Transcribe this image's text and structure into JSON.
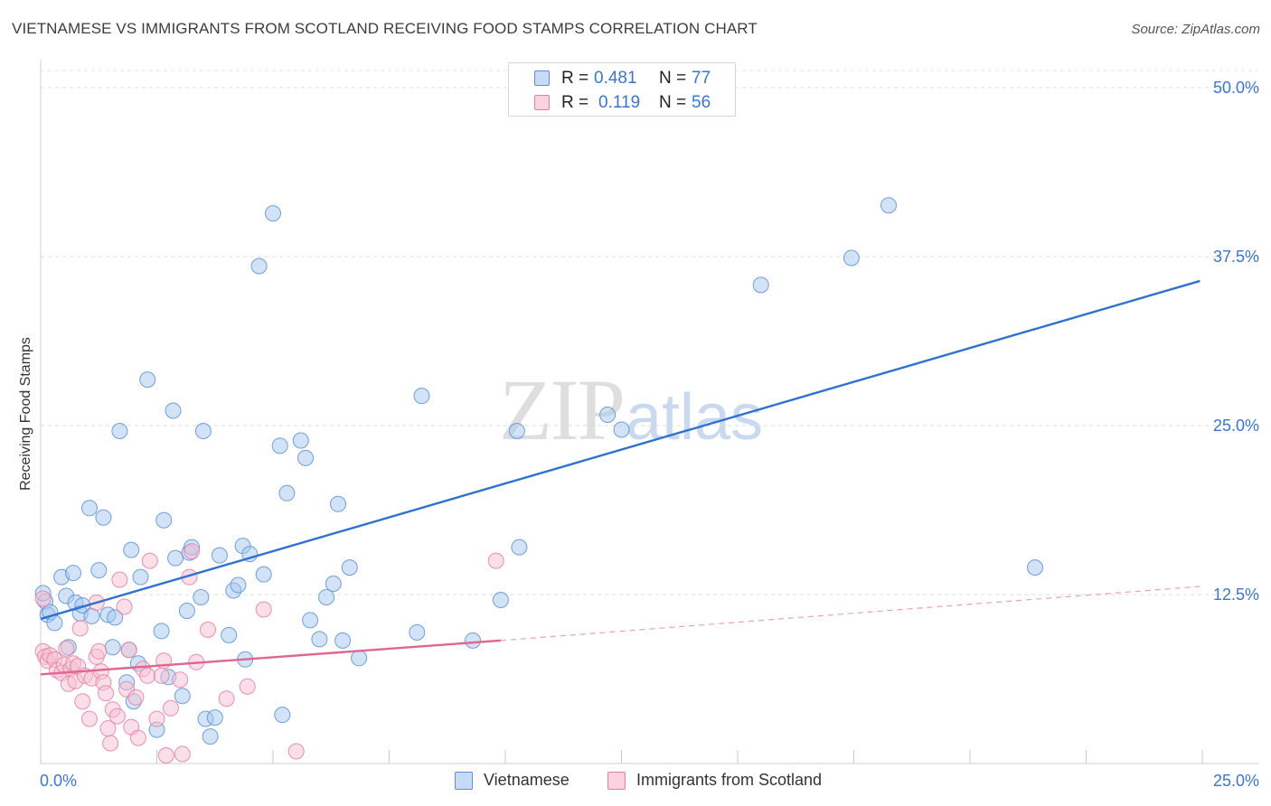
{
  "header": {
    "title": "VIETNAMESE VS IMMIGRANTS FROM SCOTLAND RECEIVING FOOD STAMPS CORRELATION CHART",
    "source": "Source: ZipAtlas.com"
  },
  "watermark": {
    "zip": "ZIP",
    "atlas": "atlas"
  },
  "stats_legend": {
    "rows": [
      {
        "r_label": "R =",
        "r_value": "0.481",
        "n_label": "N =",
        "n_value": "77",
        "color": "#a8c8ef",
        "stroke": "#5b8fd6"
      },
      {
        "r_label": "R =",
        "r_value": "0.119",
        "n_label": "N =",
        "n_value": "56",
        "color": "#f7bfd1",
        "stroke": "#e57fa0"
      }
    ]
  },
  "bottom_legend": {
    "items": [
      {
        "label": "Vietnamese",
        "color": "#c6dbf5",
        "stroke": "#5b8fd6"
      },
      {
        "label": "Immigrants from Scotland",
        "color": "#fbd3e0",
        "stroke": "#e57fa0"
      }
    ]
  },
  "chart_data": {
    "type": "scatter",
    "title": "VIETNAMESE VS IMMIGRANTS FROM SCOTLAND RECEIVING FOOD STAMPS CORRELATION CHART",
    "xlabel": "",
    "ylabel": "Receiving Food Stamps",
    "xlim": [
      0,
      25
    ],
    "ylim": [
      0,
      50
    ],
    "x_tick_labels": [
      {
        "value": 0,
        "label": "0.0%"
      },
      {
        "value": 25,
        "label": "25.0%"
      }
    ],
    "y_tick_labels": [
      {
        "value": 12.5,
        "label": "12.5%"
      },
      {
        "value": 25,
        "label": "25.0%"
      },
      {
        "value": 37.5,
        "label": "37.5%"
      },
      {
        "value": 50,
        "label": "50.0%"
      }
    ],
    "grid": true,
    "series": [
      {
        "name": "Vietnamese",
        "color": "#a8c8ef",
        "stroke": "#5b8fd6",
        "trend": {
          "x": [
            0,
            24.95
          ],
          "y": [
            10.7,
            35.7
          ],
          "color": "#2f72d1",
          "dashed": false
        },
        "points": [
          [
            0.1,
            12.0
          ],
          [
            0.15,
            11.0
          ],
          [
            0.2,
            11.2
          ],
          [
            0.3,
            10.4
          ],
          [
            0.45,
            13.8
          ],
          [
            0.55,
            12.4
          ],
          [
            0.7,
            14.1
          ],
          [
            0.75,
            11.9
          ],
          [
            0.85,
            11.1
          ],
          [
            0.9,
            11.7
          ],
          [
            1.05,
            18.9
          ],
          [
            1.1,
            10.9
          ],
          [
            1.25,
            14.3
          ],
          [
            1.35,
            18.2
          ],
          [
            1.45,
            11.0
          ],
          [
            1.55,
            8.6
          ],
          [
            1.6,
            10.8
          ],
          [
            1.7,
            24.6
          ],
          [
            1.85,
            6.0
          ],
          [
            1.9,
            8.4
          ],
          [
            1.95,
            15.8
          ],
          [
            2.0,
            4.6
          ],
          [
            2.1,
            7.4
          ],
          [
            2.15,
            13.8
          ],
          [
            2.3,
            28.4
          ],
          [
            2.5,
            2.5
          ],
          [
            2.6,
            9.8
          ],
          [
            2.65,
            18.0
          ],
          [
            2.75,
            6.4
          ],
          [
            2.85,
            26.1
          ],
          [
            2.9,
            15.2
          ],
          [
            3.05,
            5.0
          ],
          [
            3.15,
            11.3
          ],
          [
            3.2,
            15.6
          ],
          [
            3.25,
            16.0
          ],
          [
            3.45,
            12.3
          ],
          [
            3.5,
            24.6
          ],
          [
            3.55,
            3.3
          ],
          [
            3.65,
            2.0
          ],
          [
            3.75,
            3.4
          ],
          [
            3.85,
            15.4
          ],
          [
            4.05,
            9.5
          ],
          [
            4.15,
            12.8
          ],
          [
            4.25,
            13.2
          ],
          [
            4.35,
            16.1
          ],
          [
            4.4,
            7.7
          ],
          [
            4.5,
            15.5
          ],
          [
            4.7,
            36.8
          ],
          [
            4.8,
            14.0
          ],
          [
            5.0,
            40.7
          ],
          [
            5.15,
            23.5
          ],
          [
            5.2,
            3.6
          ],
          [
            5.3,
            20.0
          ],
          [
            5.6,
            23.9
          ],
          [
            5.7,
            22.6
          ],
          [
            5.8,
            10.6
          ],
          [
            6.0,
            9.2
          ],
          [
            6.15,
            12.3
          ],
          [
            6.3,
            13.3
          ],
          [
            6.4,
            19.2
          ],
          [
            6.5,
            9.1
          ],
          [
            6.65,
            14.5
          ],
          [
            6.85,
            7.8
          ],
          [
            8.1,
            9.7
          ],
          [
            8.2,
            27.2
          ],
          [
            9.3,
            9.1
          ],
          [
            9.9,
            12.1
          ],
          [
            10.25,
            24.6
          ],
          [
            10.3,
            16.0
          ],
          [
            12.2,
            25.8
          ],
          [
            12.5,
            24.7
          ],
          [
            15.5,
            35.4
          ],
          [
            17.45,
            37.4
          ],
          [
            18.25,
            41.3
          ],
          [
            21.4,
            14.5
          ],
          [
            0.05,
            12.6
          ],
          [
            0.6,
            8.6
          ]
        ]
      },
      {
        "name": "Immigrants from Scotland",
        "color": "#f7bfd1",
        "stroke": "#e57fa0",
        "trend": {
          "x": [
            0,
            9.9
          ],
          "y": [
            6.6,
            9.1
          ],
          "color": "#e0668f",
          "dashed": false
        },
        "trend_extension": {
          "x": [
            9.9,
            24.95
          ],
          "y": [
            9.1,
            13.1
          ],
          "color": "#e9a0b8",
          "dashed": true
        },
        "points": [
          [
            0.05,
            8.3
          ],
          [
            0.1,
            7.9
          ],
          [
            0.15,
            7.6
          ],
          [
            0.2,
            8.0
          ],
          [
            0.3,
            7.7
          ],
          [
            0.35,
            6.9
          ],
          [
            0.45,
            6.7
          ],
          [
            0.5,
            7.3
          ],
          [
            0.55,
            8.5
          ],
          [
            0.6,
            5.9
          ],
          [
            0.65,
            7.0
          ],
          [
            0.7,
            7.4
          ],
          [
            0.75,
            6.1
          ],
          [
            0.8,
            7.2
          ],
          [
            0.85,
            10.0
          ],
          [
            0.9,
            4.6
          ],
          [
            0.95,
            6.5
          ],
          [
            1.05,
            3.3
          ],
          [
            1.1,
            6.3
          ],
          [
            1.2,
            7.9
          ],
          [
            1.25,
            8.3
          ],
          [
            1.3,
            6.8
          ],
          [
            1.35,
            6.0
          ],
          [
            1.4,
            5.2
          ],
          [
            1.45,
            2.6
          ],
          [
            1.5,
            1.5
          ],
          [
            1.55,
            4.0
          ],
          [
            1.65,
            3.5
          ],
          [
            1.7,
            13.6
          ],
          [
            1.8,
            11.6
          ],
          [
            1.85,
            5.5
          ],
          [
            1.9,
            8.4
          ],
          [
            1.95,
            2.7
          ],
          [
            2.05,
            4.9
          ],
          [
            2.1,
            1.9
          ],
          [
            2.2,
            7.0
          ],
          [
            2.3,
            6.5
          ],
          [
            2.35,
            15.0
          ],
          [
            2.5,
            3.3
          ],
          [
            2.6,
            6.5
          ],
          [
            2.65,
            7.6
          ],
          [
            2.7,
            0.6
          ],
          [
            2.8,
            4.1
          ],
          [
            3.05,
            0.7
          ],
          [
            3.2,
            13.8
          ],
          [
            3.25,
            15.7
          ],
          [
            3.35,
            7.5
          ],
          [
            3.6,
            9.9
          ],
          [
            4.0,
            4.8
          ],
          [
            4.45,
            5.7
          ],
          [
            4.8,
            11.4
          ],
          [
            5.5,
            0.9
          ],
          [
            9.8,
            15.0
          ],
          [
            0.05,
            12.2
          ],
          [
            1.2,
            11.9
          ],
          [
            3.0,
            6.2
          ]
        ]
      }
    ]
  }
}
